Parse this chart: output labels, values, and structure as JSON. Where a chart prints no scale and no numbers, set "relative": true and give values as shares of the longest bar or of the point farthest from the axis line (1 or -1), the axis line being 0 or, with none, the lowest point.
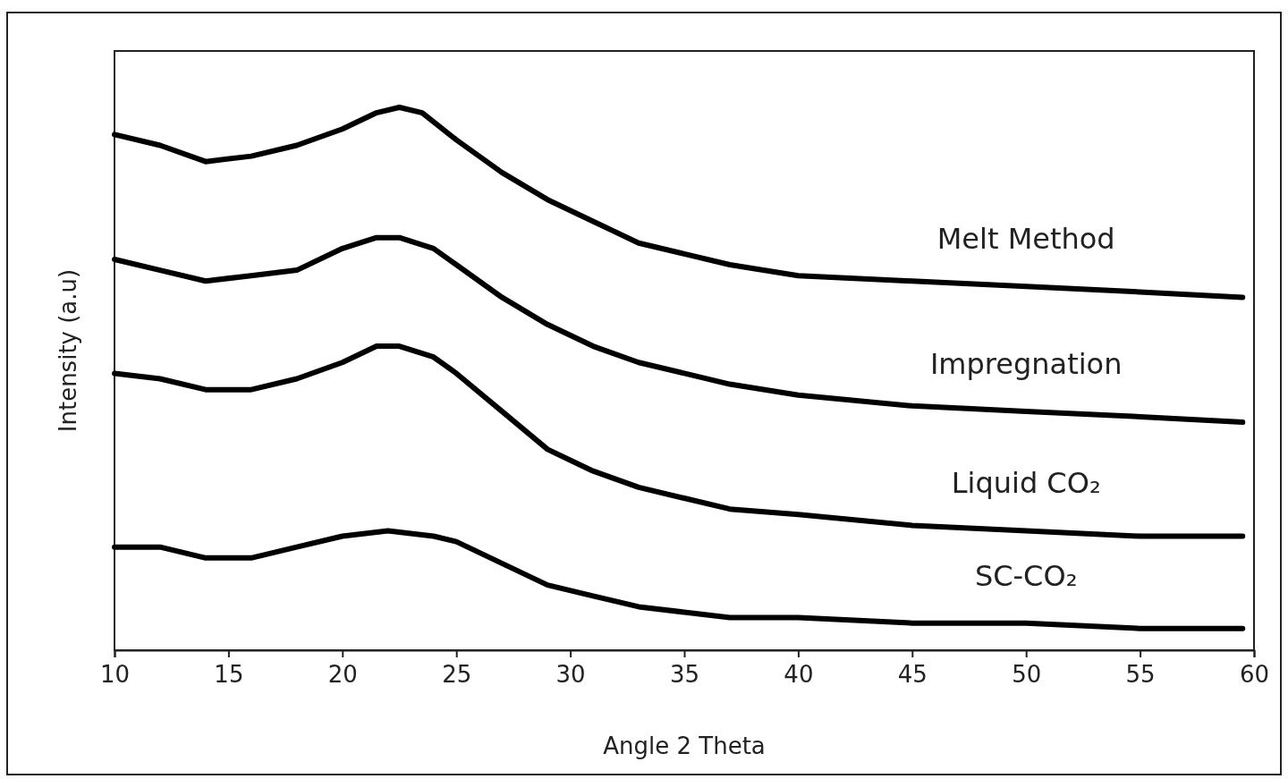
{
  "chart_data": {
    "type": "line",
    "relative": true,
    "xlabel": "Angle 2 Theta",
    "ylabel": "Intensity (a.u)",
    "xlim": [
      10,
      60
    ],
    "xticks": [
      10,
      15,
      20,
      25,
      30,
      35,
      40,
      45,
      50,
      55,
      60
    ],
    "tick_labels": "x",
    "legend": false,
    "series": [
      {
        "name": "Melt Method",
        "color": "#000000",
        "x": [
          10,
          12,
          14,
          16,
          18,
          20,
          21.5,
          22.5,
          23.5,
          25,
          27,
          29,
          31,
          33,
          35,
          37,
          40,
          45,
          50,
          55,
          59.5
        ],
        "values": [
          0.95,
          0.93,
          0.9,
          0.91,
          0.93,
          0.96,
          0.99,
          1,
          0.99,
          0.94,
          0.88,
          0.83,
          0.79,
          0.75,
          0.73,
          0.71,
          0.69,
          0.68,
          0.67,
          0.66,
          0.65
        ]
      },
      {
        "name": "Impregnation",
        "color": "#000000",
        "x": [
          10,
          12,
          14,
          16,
          18,
          20,
          21.5,
          22.5,
          24,
          25,
          27,
          29,
          31,
          33,
          35,
          37,
          40,
          45,
          50,
          55,
          59.5
        ],
        "values": [
          0.72,
          0.7,
          0.68,
          0.69,
          0.7,
          0.74,
          0.76,
          0.76,
          0.74,
          0.71,
          0.65,
          0.6,
          0.56,
          0.53,
          0.51,
          0.49,
          0.47,
          0.45,
          0.44,
          0.43,
          0.42
        ]
      },
      {
        "name": "Liquid CO₂",
        "color": "#000000",
        "x": [
          10,
          12,
          14,
          16,
          18,
          20,
          21.5,
          22.5,
          24,
          25,
          27,
          29,
          31,
          33,
          35,
          37,
          40,
          45,
          50,
          55,
          59.5
        ],
        "values": [
          0.51,
          0.5,
          0.48,
          0.48,
          0.5,
          0.53,
          0.56,
          0.56,
          0.54,
          0.51,
          0.44,
          0.37,
          0.33,
          0.3,
          0.28,
          0.26,
          0.25,
          0.23,
          0.22,
          0.21,
          0.21
        ]
      },
      {
        "name": "SC-CO₂",
        "color": "#000000",
        "x": [
          10,
          12,
          14,
          16,
          18,
          20,
          22,
          24,
          25,
          27,
          29,
          31,
          33,
          35,
          37,
          40,
          45,
          50,
          55,
          59.5
        ],
        "values": [
          0.19,
          0.19,
          0.17,
          0.17,
          0.19,
          0.21,
          0.22,
          0.21,
          0.2,
          0.16,
          0.12,
          0.1,
          0.08,
          0.07,
          0.06,
          0.06,
          0.05,
          0.05,
          0.04,
          0.04
        ]
      }
    ]
  }
}
